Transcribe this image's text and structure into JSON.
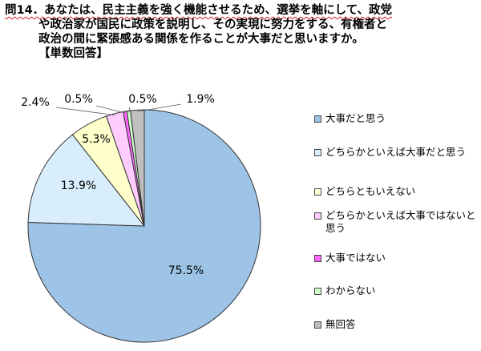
{
  "title": {
    "line1": "問14．あなたは、民主主義を強く機能させるため、選挙を軸にして、政党",
    "line2": "や政治家が国民に政策を説明し、その実現に努力をする、有権者と",
    "line3": "政治の間に緊張感ある関係を作ることが大事だと思いますか。",
    "note": "【単数回答】"
  },
  "chart_data": {
    "type": "pie",
    "title": "問14．あなたは、民主主義を強く機能させるため、選挙を軸にして、政党や政治家が国民に政策を説明し、その実現に努力をする、有権者と政治の間に緊張感ある関係を作ることが大事だと思いますか。",
    "subtitle": "【単数回答】",
    "legend_position": "right",
    "start": "top",
    "direction": "clockwise",
    "slices": [
      {
        "label": "大事だと思う",
        "value": 75.5,
        "display": "75.5%",
        "color": "#9dc3e6"
      },
      {
        "label": "どちらかといえば大事だと思う",
        "value": 13.9,
        "display": "13.9%",
        "color": "#d9eefc"
      },
      {
        "label": "どちらともいえない",
        "value": 5.3,
        "display": "5.3%",
        "color": "#ffffcc"
      },
      {
        "label": "どちらかといえば大事ではないと思う",
        "value": 2.4,
        "display": "2.4%",
        "color": "#ffccff"
      },
      {
        "label": "大事ではない",
        "value": 0.5,
        "display": "0.5%",
        "color": "#ff66ff"
      },
      {
        "label": "わからない",
        "value": 0.5,
        "display": "0.5%",
        "color": "#ccffcc"
      },
      {
        "label": "無回答",
        "value": 1.9,
        "display": "1.9%",
        "color": "#bfbfbf"
      }
    ]
  }
}
